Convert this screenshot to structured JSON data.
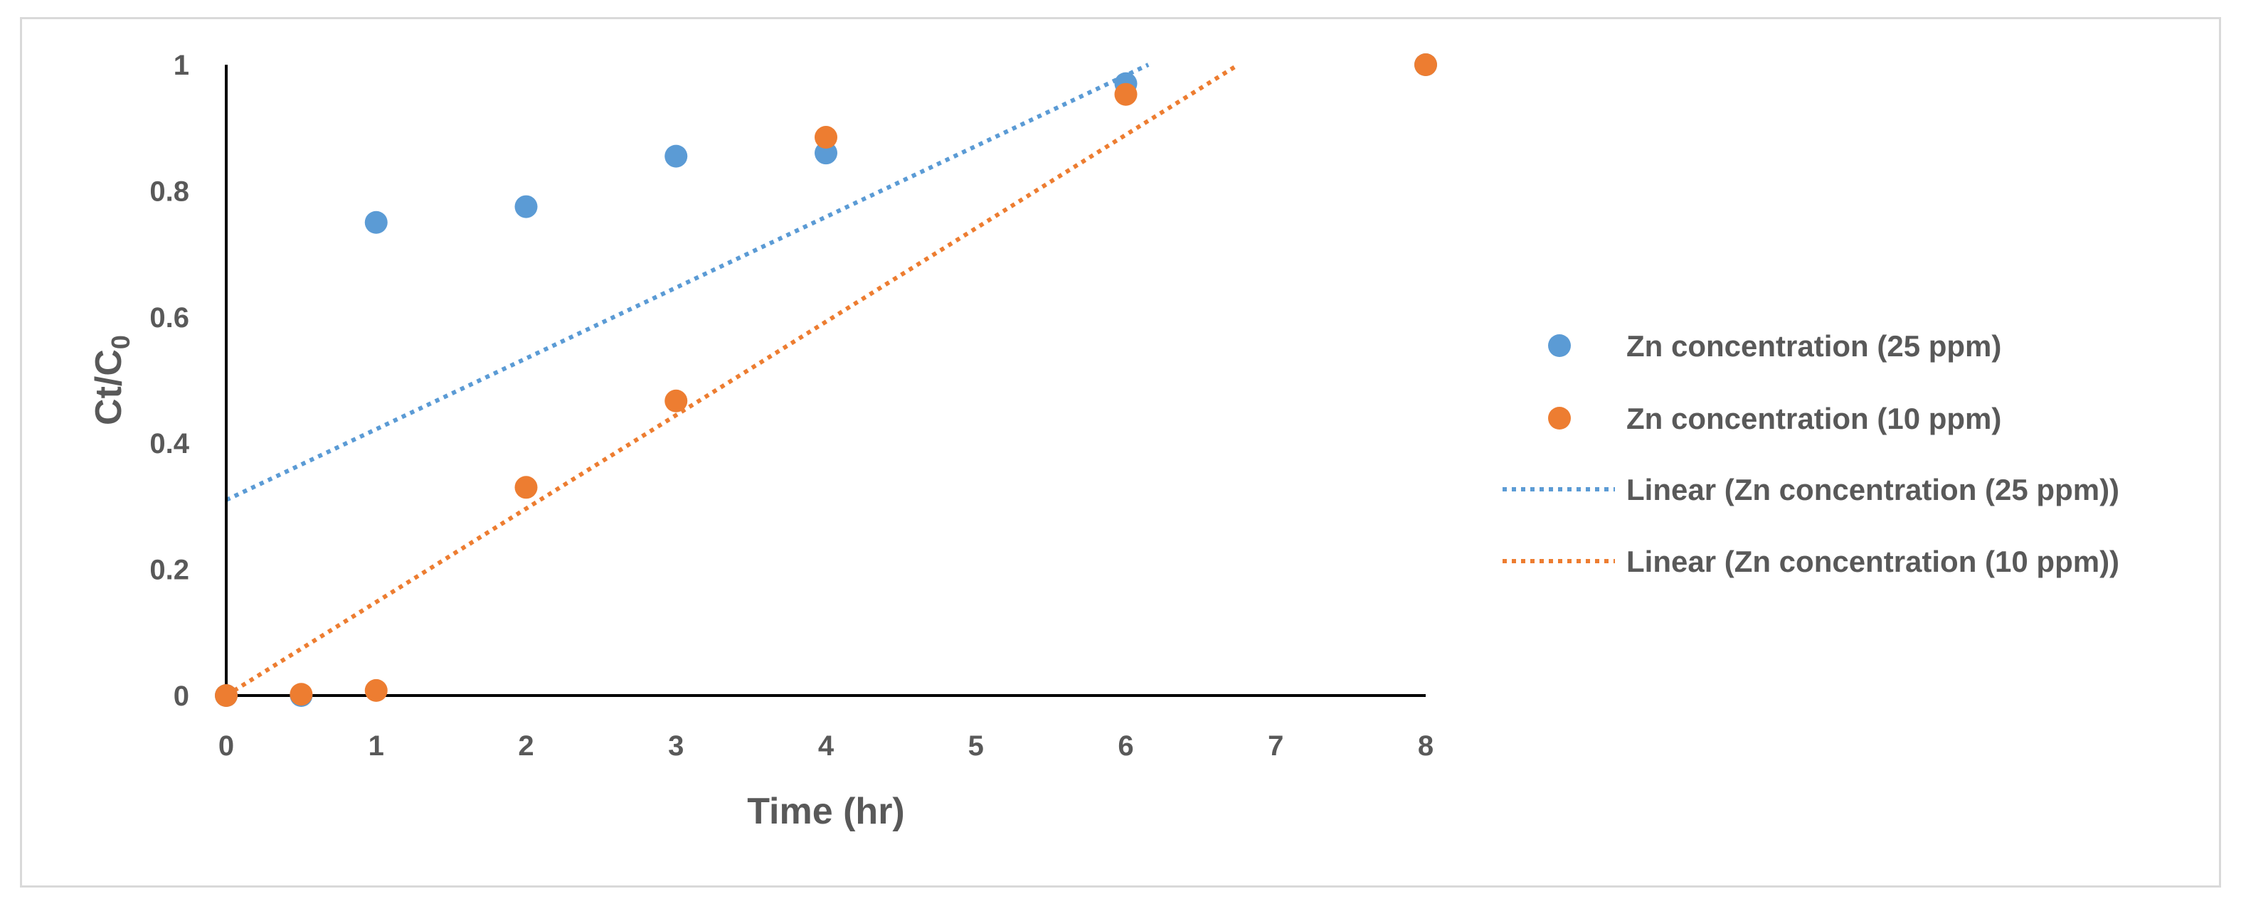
{
  "chart_data": {
    "type": "scatter",
    "title": "",
    "xlabel": "Time (hr)",
    "ylabel_main": "Ct/C",
    "ylabel_sub": "0",
    "xlim": [
      0,
      8
    ],
    "ylim": [
      0,
      1
    ],
    "x_ticks": [
      "0",
      "1",
      "2",
      "3",
      "4",
      "5",
      "6",
      "7",
      "8"
    ],
    "y_ticks": [
      "0",
      "0.2",
      "0.4",
      "0.6",
      "0.8",
      "1"
    ],
    "legend_position": "right",
    "series": [
      {
        "name": "Zn concentration (25 ppm)",
        "color": "#5b9bd5",
        "x": [
          0,
          0.5,
          1,
          2,
          3,
          4,
          6,
          8
        ],
        "y": [
          0,
          0,
          0.75,
          0.775,
          0.855,
          0.86,
          0.97,
          1.0
        ]
      },
      {
        "name": "Zn concentration (10 ppm)",
        "color": "#ed7d31",
        "x": [
          0,
          0.5,
          1,
          2,
          3,
          4,
          6,
          8
        ],
        "y": [
          0,
          0.002,
          0.008,
          0.33,
          0.467,
          0.885,
          0.953,
          1.0
        ]
      }
    ],
    "trendlines": [
      {
        "name": "Linear (Zn concentration (25 ppm))",
        "color": "#5b9bd5",
        "style": "dotted",
        "x_start": 0,
        "y_start": 0.31,
        "x_end": 6.15,
        "y_end": 1.0
      },
      {
        "name": "Linear (Zn concentration (10 ppm))",
        "color": "#ed7d31",
        "style": "dotted",
        "x_start": 0,
        "y_start": 0.0,
        "x_end": 6.75,
        "y_end": 1.0
      }
    ]
  }
}
